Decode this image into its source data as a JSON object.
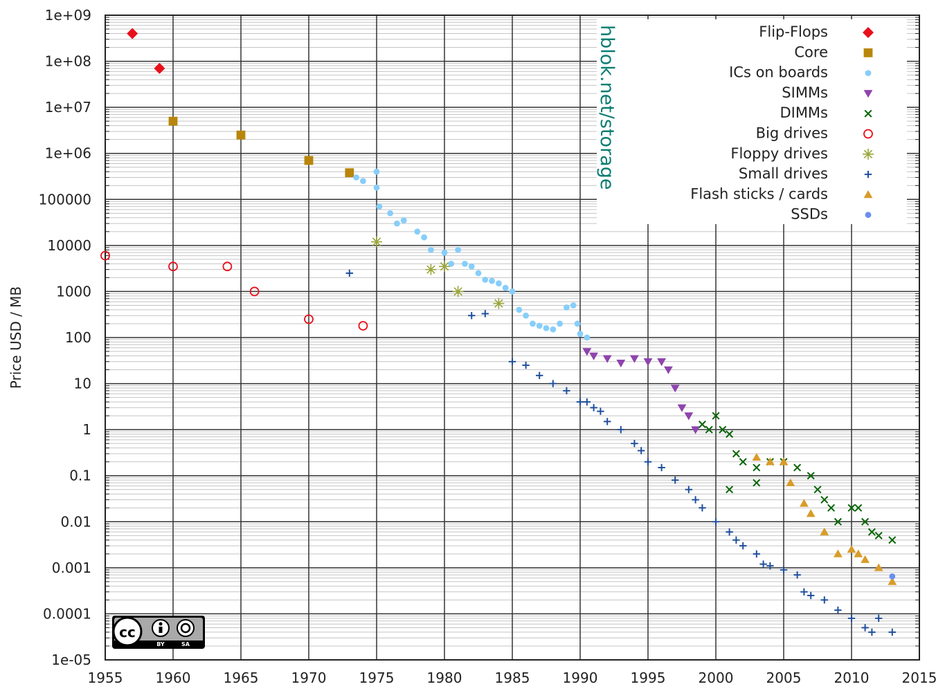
{
  "chart_data": {
    "type": "scatter",
    "title": "",
    "xlabel": "",
    "ylabel": "Price USD / MB",
    "xlim": [
      1955,
      2015
    ],
    "ylim": [
      1e-05,
      1000000000
    ],
    "yscale": "log",
    "grid": true,
    "legend_position": "top-right",
    "xticks": [
      "1955",
      "1960",
      "1965",
      "1970",
      "1975",
      "1980",
      "1985",
      "1990",
      "1995",
      "2000",
      "2005",
      "2010",
      "2015"
    ],
    "yticks": [
      "1e+09",
      "1e+08",
      "1e+07",
      "1e+06",
      "100000",
      "10000",
      "1000",
      "100",
      "10",
      "1",
      "0.1",
      "0.01",
      "0.001",
      "0.0001",
      "1e-05"
    ],
    "series": [
      {
        "name": "Flip-Flops",
        "marker": "diamond",
        "color": "#e8101a",
        "points": [
          [
            1957,
            400000000
          ],
          [
            1959,
            70000000
          ]
        ]
      },
      {
        "name": "Core",
        "marker": "square",
        "color": "#b8860b",
        "points": [
          [
            1960,
            5000000
          ],
          [
            1965,
            2500000
          ],
          [
            1970,
            700000
          ],
          [
            1973,
            380000
          ]
        ]
      },
      {
        "name": "ICs on boards",
        "marker": "dot",
        "color": "#87cefa",
        "points": [
          [
            1973.5,
            300000
          ],
          [
            1974,
            250000
          ],
          [
            1975,
            400000
          ],
          [
            1975,
            180000
          ],
          [
            1975.2,
            70000
          ],
          [
            1976,
            50000
          ],
          [
            1976.5,
            30000
          ],
          [
            1977,
            35000
          ],
          [
            1978,
            20000
          ],
          [
            1978.5,
            15000
          ],
          [
            1979,
            8000
          ],
          [
            1980,
            7000
          ],
          [
            1980.5,
            4000
          ],
          [
            1981,
            8000
          ],
          [
            1981.5,
            4000
          ],
          [
            1982,
            3500
          ],
          [
            1982.5,
            2500
          ],
          [
            1983,
            1800
          ],
          [
            1983.5,
            1700
          ],
          [
            1984,
            1500
          ],
          [
            1984.5,
            1200
          ],
          [
            1985,
            1000
          ],
          [
            1985.5,
            400
          ],
          [
            1986,
            300
          ],
          [
            1986.5,
            200
          ],
          [
            1987,
            180
          ],
          [
            1987.5,
            160
          ],
          [
            1988,
            150
          ],
          [
            1988.5,
            200
          ],
          [
            1989,
            450
          ],
          [
            1989.5,
            500
          ],
          [
            1989.8,
            200
          ],
          [
            1990,
            120
          ],
          [
            1990.5,
            100
          ]
        ]
      },
      {
        "name": "SIMMs",
        "marker": "triangle-down",
        "color": "#8e44ad",
        "points": [
          [
            1990.5,
            50
          ],
          [
            1991,
            40
          ],
          [
            1992,
            35
          ],
          [
            1993,
            28
          ],
          [
            1994,
            35
          ],
          [
            1995,
            30
          ],
          [
            1996,
            30
          ],
          [
            1996.5,
            20
          ],
          [
            1997,
            8
          ],
          [
            1997.5,
            3
          ],
          [
            1998,
            2
          ],
          [
            1998.5,
            1
          ]
        ]
      },
      {
        "name": "DIMMs",
        "marker": "x",
        "color": "#006400",
        "points": [
          [
            1999,
            1.3
          ],
          [
            1999.5,
            1
          ],
          [
            2000,
            2
          ],
          [
            2000.5,
            1
          ],
          [
            2001,
            0.8
          ],
          [
            2001.5,
            0.3
          ],
          [
            2002,
            0.2
          ],
          [
            2001,
            0.05
          ],
          [
            2003,
            0.07
          ],
          [
            2003,
            0.15
          ],
          [
            2004,
            0.2
          ],
          [
            2005,
            0.2
          ],
          [
            2006,
            0.15
          ],
          [
            2007,
            0.1
          ],
          [
            2007.5,
            0.05
          ],
          [
            2008,
            0.03
          ],
          [
            2008.5,
            0.02
          ],
          [
            2009,
            0.01
          ],
          [
            2010,
            0.02
          ],
          [
            2010.5,
            0.02
          ],
          [
            2011,
            0.01
          ],
          [
            2011.5,
            0.006
          ],
          [
            2012,
            0.005
          ],
          [
            2013,
            0.004
          ]
        ]
      },
      {
        "name": "Big drives",
        "marker": "circle-open",
        "color": "#e8101a",
        "points": [
          [
            1955,
            6000
          ],
          [
            1960,
            3500
          ],
          [
            1964,
            3500
          ],
          [
            1966,
            1000
          ],
          [
            1970,
            250
          ],
          [
            1974,
            180
          ]
        ]
      },
      {
        "name": "Floppy drives",
        "marker": "asterisk",
        "color": "#9aa53a",
        "points": [
          [
            1975,
            12000
          ],
          [
            1979,
            3000
          ],
          [
            1980,
            3500
          ],
          [
            1981,
            1000
          ],
          [
            1984,
            550
          ]
        ]
      },
      {
        "name": "Small drives",
        "marker": "plus",
        "color": "#1f4e9c",
        "points": [
          [
            1973,
            2500
          ],
          [
            1982,
            300
          ],
          [
            1983,
            330
          ],
          [
            1985,
            30
          ],
          [
            1986,
            25
          ],
          [
            1987,
            15
          ],
          [
            1988,
            10
          ],
          [
            1989,
            7
          ],
          [
            1990,
            4
          ],
          [
            1990.5,
            4
          ],
          [
            1991,
            3
          ],
          [
            1991.5,
            2.5
          ],
          [
            1992,
            1.5
          ],
          [
            1993,
            1
          ],
          [
            1994,
            0.5
          ],
          [
            1994.5,
            0.35
          ],
          [
            1995,
            0.2
          ],
          [
            1996,
            0.15
          ],
          [
            1997,
            0.08
          ],
          [
            1998,
            0.05
          ],
          [
            1998.5,
            0.03
          ],
          [
            1999,
            0.02
          ],
          [
            2000,
            0.01
          ],
          [
            2001,
            0.006
          ],
          [
            2001.5,
            0.004
          ],
          [
            2002,
            0.003
          ],
          [
            2003,
            0.002
          ],
          [
            2003.5,
            0.0012
          ],
          [
            2004,
            0.0011
          ],
          [
            2005,
            0.0009
          ],
          [
            2006,
            0.0007
          ],
          [
            2006.5,
            0.0003
          ],
          [
            2007,
            0.00025
          ],
          [
            2008,
            0.0002
          ],
          [
            2009,
            0.00012
          ],
          [
            2010,
            8e-05
          ],
          [
            2011,
            5e-05
          ],
          [
            2011.5,
            4e-05
          ],
          [
            2012,
            8e-05
          ],
          [
            2013,
            4e-05
          ]
        ]
      },
      {
        "name": "Flash sticks / cards",
        "marker": "triangle-up",
        "color": "#d89c2a",
        "points": [
          [
            2003,
            0.25
          ],
          [
            2004,
            0.2
          ],
          [
            2005,
            0.2
          ],
          [
            2005.5,
            0.07
          ],
          [
            2006.5,
            0.025
          ],
          [
            2007,
            0.015
          ],
          [
            2008,
            0.006
          ],
          [
            2009,
            0.002
          ],
          [
            2010,
            0.0025
          ],
          [
            2010.5,
            0.002
          ],
          [
            2011,
            0.0015
          ],
          [
            2012,
            0.001
          ],
          [
            2013,
            0.0005
          ]
        ]
      },
      {
        "name": "SSDs",
        "marker": "dot",
        "color": "#6b8ff0",
        "points": [
          [
            2013,
            0.00065
          ]
        ]
      }
    ]
  },
  "watermark": {
    "text": "hblok.net/storage",
    "color": "#0b7d72"
  },
  "license": {
    "badge": "cc",
    "by": "BY",
    "sa": "SA"
  }
}
